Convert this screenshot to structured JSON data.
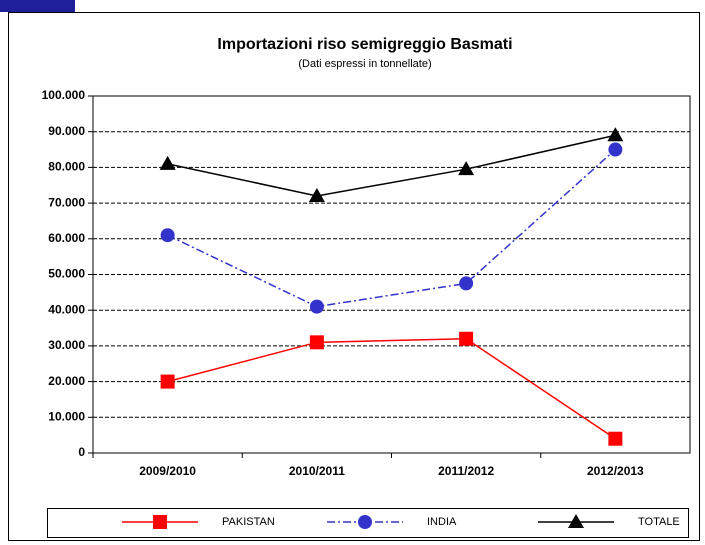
{
  "chart_data": {
    "type": "line",
    "title": "Importazioni riso semigreggio Basmati",
    "subtitle": "(Dati espressi in tonnellate)",
    "categories": [
      "2009/2010",
      "2010/2011",
      "2011/2012",
      "2012/2013"
    ],
    "series": [
      {
        "name": "PAKISTAN",
        "color": "#ff0000",
        "marker": "square",
        "dash": "solid",
        "values": [
          20000,
          31000,
          32000,
          4000
        ]
      },
      {
        "name": "INDIA",
        "color": "#3333cc",
        "marker": "circle",
        "dash": "dashdot",
        "values": [
          61000,
          41000,
          47500,
          85000
        ]
      },
      {
        "name": "TOTALE",
        "color": "#000000",
        "marker": "triangle",
        "dash": "solid",
        "values": [
          81000,
          72000,
          79500,
          89000
        ]
      }
    ],
    "ylim": [
      0,
      100000
    ],
    "yticks": [
      0,
      {
        "value": 10000,
        "label": "10.000"
      },
      {
        "value": 20000,
        "label": "20.000"
      },
      {
        "value": 30000,
        "label": "30.000"
      },
      {
        "value": 40000,
        "label": "40.000"
      },
      {
        "value": 50000,
        "label": "50.000"
      },
      {
        "value": 60000,
        "label": "60.000"
      },
      {
        "value": 70000,
        "label": "70.000"
      },
      {
        "value": 80000,
        "label": "80.000"
      },
      {
        "value": 90000,
        "label": "90.000"
      },
      {
        "value": 100000,
        "label": "100.000"
      }
    ],
    "grid": true,
    "legend": "bottom"
  }
}
